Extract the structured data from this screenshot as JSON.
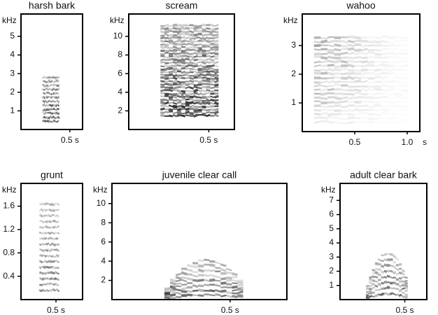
{
  "chart_data": [
    {
      "type": "spectrogram",
      "title": "harsh bark",
      "ylabel": "kHz",
      "ylim": [
        0,
        6.2
      ],
      "yticks": [
        1,
        2,
        3,
        4,
        5
      ],
      "xlim": [
        0,
        0.63
      ],
      "xticks": [
        {
          "value": 0.5,
          "label": "0.5 s"
        }
      ]
    },
    {
      "type": "spectrogram",
      "title": "scream",
      "ylabel": "kHz",
      "ylim": [
        0,
        12.4
      ],
      "yticks": [
        2,
        4,
        6,
        8,
        10
      ],
      "xlim": [
        0,
        0.66
      ],
      "xticks": [
        {
          "value": 0.5,
          "label": "0.5 s"
        }
      ]
    },
    {
      "type": "spectrogram",
      "title": "wahoo",
      "ylabel": "kHz",
      "xlabel": "s",
      "ylim": [
        0,
        4.1
      ],
      "yticks": [
        1,
        2,
        3
      ],
      "xlim": [
        0,
        1.12
      ],
      "xticks": [
        0.5,
        {
          "value": 1.0,
          "label": "1.0"
        }
      ]
    },
    {
      "type": "spectrogram",
      "title": "grunt",
      "ylabel": "kHz",
      "ylim": [
        0,
        1.99
      ],
      "yticks": [
        0.4,
        0.8,
        1.2,
        1.6
      ],
      "xlim": [
        0,
        0.88
      ],
      "xticks": [
        {
          "value": 0.5,
          "label": "0.5 s"
        }
      ]
    },
    {
      "type": "spectrogram",
      "title": "juvenile clear call",
      "ylabel": "kHz",
      "ylim": [
        0,
        12.1
      ],
      "yticks": [
        2,
        4,
        6,
        8,
        10
      ],
      "xlim": [
        0,
        0.74
      ],
      "xticks": [
        {
          "value": 0.5,
          "label": "0.5 s"
        }
      ]
    },
    {
      "type": "spectrogram",
      "title": "adult clear bark",
      "ylabel": "kHz",
      "ylim": [
        0,
        8.2
      ],
      "yticks": [
        1,
        2,
        3,
        4,
        5,
        6,
        7
      ],
      "xlim": [
        0,
        0.67
      ],
      "xticks": [
        {
          "value": 0.5,
          "label": "0.5 s"
        }
      ]
    }
  ]
}
